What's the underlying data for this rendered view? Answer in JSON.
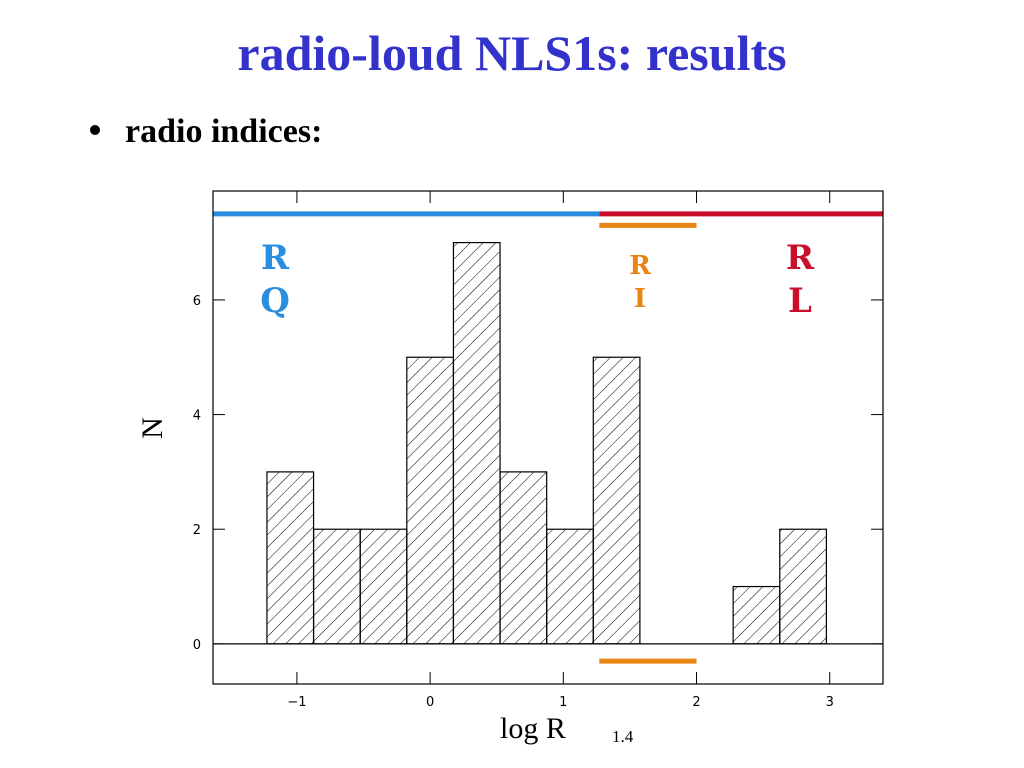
{
  "title": "radio-loud NLS1s:  results",
  "bullets": [
    "radio indices:"
  ],
  "chart_data": {
    "type": "histogram",
    "xlabel": "log R",
    "xlabel_sub": "1.4",
    "ylabel": "N",
    "bins": [
      -1.225,
      -0.875,
      -0.525,
      -0.175,
      0.175,
      0.525,
      0.875,
      1.225,
      1.575,
      1.925,
      2.275,
      2.625,
      2.975
    ],
    "counts": [
      3,
      2,
      2,
      5,
      7,
      3,
      2,
      5,
      0,
      0,
      1,
      2
    ],
    "xlim": [
      -1.63,
      3.4
    ],
    "ylim": [
      -0.7,
      7.9
    ],
    "xticks": [
      {
        "value": -1,
        "label": "−1"
      },
      0,
      1,
      2,
      3
    ],
    "yticks": [
      0,
      2,
      4,
      6
    ],
    "hatch": true,
    "regions": [
      {
        "label": [
          "R",
          "Q"
        ],
        "color": "#2a8ee0",
        "xrange": [
          -1.63,
          1.27
        ],
        "y": [
          7.5
        ]
      },
      {
        "label": [
          "R",
          "I"
        ],
        "color": "#e88412",
        "xrange": [
          1.27,
          2.0
        ],
        "y": [
          7.3,
          -0.3
        ]
      },
      {
        "label": [
          "R",
          "L"
        ],
        "color": "#c8102e",
        "xrange": [
          1.27,
          3.4
        ],
        "y": [
          7.5
        ]
      }
    ]
  }
}
